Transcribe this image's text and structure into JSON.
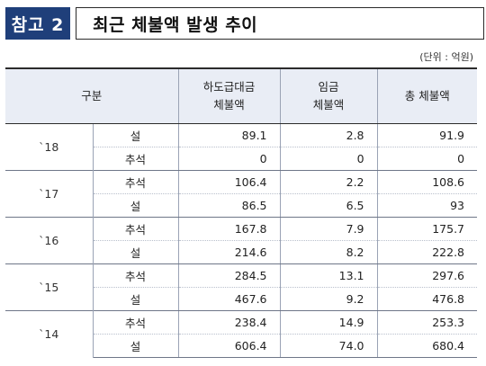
{
  "header": {
    "tag": "참고 2",
    "title": "최근 체불액 발생 추이",
    "unit": "(단위 : 억원)"
  },
  "table": {
    "columns": [
      "구분",
      "하도급대금\n체불액",
      "임금\n체불액",
      "총 체불액"
    ],
    "groups": [
      {
        "year": "`18",
        "rows": [
          {
            "season": "설",
            "subcontract": "89.1",
            "wage": "2.8",
            "total": "91.9"
          },
          {
            "season": "추석",
            "subcontract": "0",
            "wage": "0",
            "total": "0"
          }
        ]
      },
      {
        "year": "`17",
        "rows": [
          {
            "season": "추석",
            "subcontract": "106.4",
            "wage": "2.2",
            "total": "108.6"
          },
          {
            "season": "설",
            "subcontract": "86.5",
            "wage": "6.5",
            "total": "93"
          }
        ]
      },
      {
        "year": "`16",
        "rows": [
          {
            "season": "추석",
            "subcontract": "167.8",
            "wage": "7.9",
            "total": "175.7"
          },
          {
            "season": "설",
            "subcontract": "214.6",
            "wage": "8.2",
            "total": "222.8"
          }
        ]
      },
      {
        "year": "`15",
        "rows": [
          {
            "season": "추석",
            "subcontract": "284.5",
            "wage": "13.1",
            "total": "297.6"
          },
          {
            "season": "설",
            "subcontract": "467.6",
            "wage": "9.2",
            "total": "476.8"
          }
        ]
      },
      {
        "year": "`14",
        "rows": [
          {
            "season": "추석",
            "subcontract": "238.4",
            "wage": "14.9",
            "total": "253.3"
          },
          {
            "season": "설",
            "subcontract": "606.4",
            "wage": "74.0",
            "total": "680.4"
          }
        ]
      }
    ]
  },
  "colors": {
    "tag_bg": "#1f3f7a",
    "header_bg": "#e9edf5"
  }
}
